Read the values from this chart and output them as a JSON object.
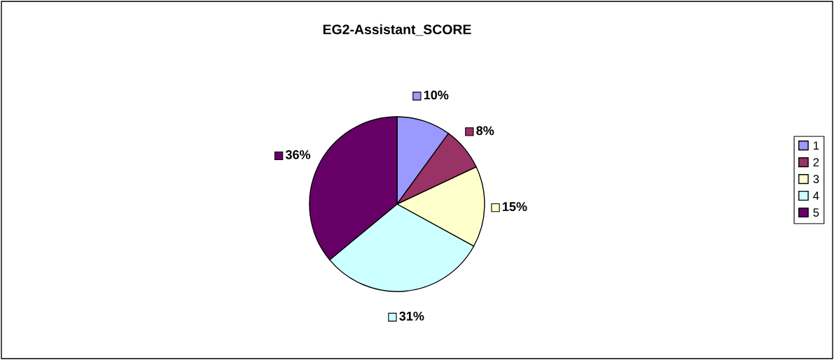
{
  "chart_data": {
    "type": "pie",
    "title": "EG2-Assistant_SCORE",
    "categories": [
      "1",
      "2",
      "3",
      "4",
      "5"
    ],
    "values": [
      10,
      8,
      15,
      31,
      36
    ],
    "value_labels": [
      "10%",
      "8%",
      "15%",
      "31%",
      "36%"
    ],
    "colors": [
      "#9999ff",
      "#993366",
      "#ffffcc",
      "#ccffff",
      "#660066"
    ],
    "legend": "right"
  }
}
